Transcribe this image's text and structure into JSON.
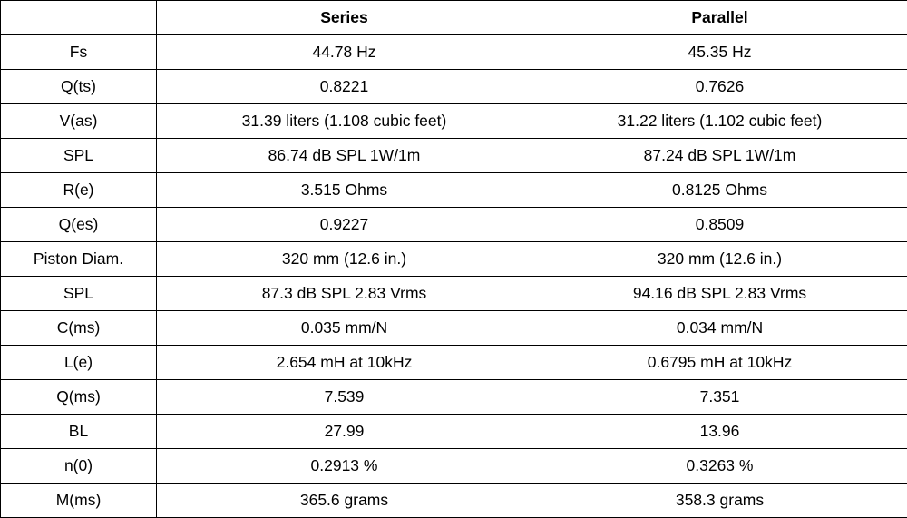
{
  "table": {
    "header": [
      "Series",
      "Parallel"
    ],
    "rows": [
      [
        "Fs",
        "44.78 Hz",
        "45.35 Hz"
      ],
      [
        "Q(ts)",
        "0.8221",
        "0.7626"
      ],
      [
        "V(as)",
        "31.39 liters (1.108 cubic feet)",
        "31.22 liters (1.102 cubic feet)"
      ],
      [
        "SPL",
        "86.74 dB SPL 1W/1m",
        "87.24 dB SPL 1W/1m"
      ],
      [
        "R(e)",
        "3.515 Ohms",
        "0.8125 Ohms"
      ],
      [
        "Q(es)",
        "0.9227",
        "0.8509"
      ],
      [
        "Piston Diam.",
        "320 mm (12.6 in.)",
        "320 mm (12.6 in.)"
      ],
      [
        "SPL",
        "87.3 dB SPL 2.83 Vrms",
        "94.16 dB SPL 2.83 Vrms"
      ],
      [
        "C(ms)",
        "0.035 mm/N",
        "0.034 mm/N"
      ],
      [
        "L(e)",
        "2.654 mH at 10kHz",
        "0.6795 mH at 10kHz"
      ],
      [
        "Q(ms)",
        "7.539",
        "7.351"
      ],
      [
        "BL",
        "27.99",
        "13.96"
      ],
      [
        "n(0)",
        "0.2913 %",
        "0.3263 %"
      ],
      [
        "M(ms)",
        "365.6 grams",
        "358.3 grams"
      ]
    ]
  }
}
